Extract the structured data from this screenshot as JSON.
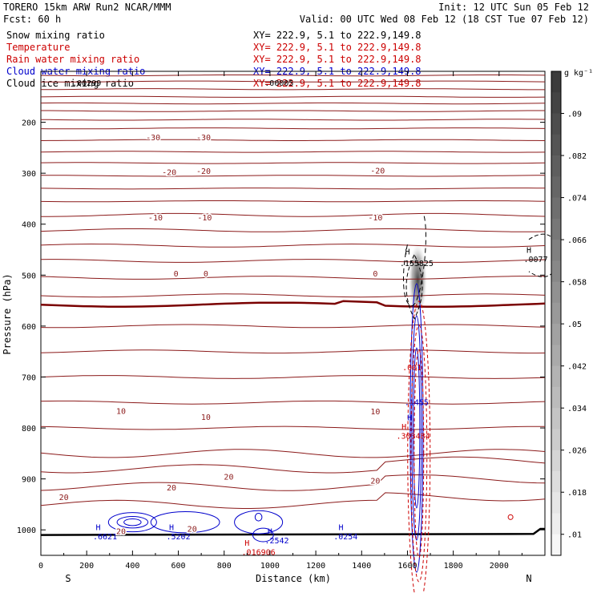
{
  "header": {
    "model": "TORERO  15km ARW   Run2    NCAR/MMM",
    "init": "Init: 12 UTC Sun 05 Feb 12",
    "fcst": "Fcst:   60 h",
    "valid": "Valid: 00 UTC Wed 08 Feb 12 (18 CST Tue 07 Feb 12)"
  },
  "fields": [
    {
      "label": "Snow mixing ratio",
      "xy": "XY= 222.9,  5.1 to 222.9,149.8",
      "color": "#000000"
    },
    {
      "label": "Temperature",
      "xy": "XY= 222.9,  5.1 to 222.9,149.8",
      "color": "#cc0000"
    },
    {
      "label": "Rain water mixing ratio",
      "xy": "XY= 222.9,  5.1 to 222.9,149.8",
      "color": "#cc0000"
    },
    {
      "label": "Cloud water mixing ratio",
      "xy": "XY= 222.9,  5.1 to 222.9,149.8",
      "color": "#0000cc"
    },
    {
      "label": "Cloud ice mixing ratio",
      "xy": "XY= 222.9,  5.1 to 222.9,149.8",
      "color": "#000000"
    }
  ],
  "chart_data": {
    "type": "cross-section contour",
    "xlabel": "Distance (km)",
    "ylabel": "Pressure (hPa)",
    "xlim": [
      0,
      2200
    ],
    "ylim": [
      1050,
      100
    ],
    "x_ticks": [
      "0",
      "200",
      "400",
      "600",
      "800",
      "1000",
      "1200",
      "1400",
      "1600",
      "1800",
      "2000"
    ],
    "y_ticks": [
      "200",
      "300",
      "400",
      "500",
      "600",
      "700",
      "800",
      "900",
      "1000"
    ],
    "endpoints": {
      "left": "S",
      "right": "N"
    },
    "temperature_labels": [
      {
        "text": "-30",
        "x": 490,
        "p": 229
      },
      {
        "text": "-30",
        "x": 710,
        "p": 229
      },
      {
        "text": "-20",
        "x": 560,
        "p": 297
      },
      {
        "text": "-20",
        "x": 710,
        "p": 295
      },
      {
        "text": "-20",
        "x": 1470,
        "p": 294
      },
      {
        "text": "-10",
        "x": 500,
        "p": 386
      },
      {
        "text": "-10",
        "x": 715,
        "p": 386
      },
      {
        "text": "-10",
        "x": 1460,
        "p": 386
      },
      {
        "text": "0",
        "x": 590,
        "p": 496
      },
      {
        "text": "0",
        "x": 720,
        "p": 496
      },
      {
        "text": "0",
        "x": 1460,
        "p": 496
      },
      {
        "text": "10",
        "x": 350,
        "p": 766
      },
      {
        "text": "10",
        "x": 720,
        "p": 778
      },
      {
        "text": "10",
        "x": 1460,
        "p": 767
      },
      {
        "text": "20",
        "x": 100,
        "p": 935
      },
      {
        "text": "20",
        "x": 570,
        "p": 916
      },
      {
        "text": "20",
        "x": 820,
        "p": 895
      },
      {
        "text": "20",
        "x": 1460,
        "p": 903
      },
      {
        "text": "20",
        "x": 350,
        "p": 1002
      },
      {
        "text": "20",
        "x": 660,
        "p": 997
      }
    ],
    "extrema_labels": [
      {
        "text": "H",
        "x": 250,
        "p": 994,
        "color": "#0000cc"
      },
      {
        "text": ".6621",
        "x": 280,
        "p": 1012,
        "color": "#0000cc"
      },
      {
        "text": "H",
        "x": 570,
        "p": 994,
        "color": "#0000cc"
      },
      {
        "text": ".5202",
        "x": 600,
        "p": 1012,
        "color": "#0000cc"
      },
      {
        "text": "H",
        "x": 1000,
        "p": 1002,
        "color": "#0000cc"
      },
      {
        "text": ".2542",
        "x": 1030,
        "p": 1020,
        "color": "#0000cc"
      },
      {
        "text": "H",
        "x": 1310,
        "p": 994,
        "color": "#0000cc"
      },
      {
        "text": ".0254",
        "x": 1330,
        "p": 1012,
        "color": "#0000cc"
      },
      {
        "text": "H",
        "x": 1610,
        "p": 779,
        "color": "#0000cc"
      },
      {
        "text": ".1455",
        "x": 1640,
        "p": 749,
        "color": "#0000cc"
      },
      {
        "text": "H",
        "x": 1585,
        "p": 797,
        "color": "#cc0000"
      },
      {
        "text": ".303484",
        "x": 1625,
        "p": 815,
        "color": "#cc0000"
      },
      {
        "text": ".001",
        "x": 1620,
        "p": 680,
        "color": "#cc0000"
      },
      {
        "text": "H",
        "x": 900,
        "p": 1025,
        "color": "#cc0000"
      },
      {
        "text": ".016906",
        "x": 950,
        "p": 1043,
        "color": "#cc0000"
      },
      {
        "text": "H",
        "x": 1600,
        "p": 453,
        "color": "#000000"
      },
      {
        "text": ".155825",
        "x": 1640,
        "p": 476,
        "color": "#000000"
      },
      {
        "text": "H",
        "x": 2130,
        "p": 450,
        "color": "#000000"
      },
      {
        "text": ".0077",
        "x": 2160,
        "p": 468,
        "color": "#000000"
      },
      {
        "text": ".00299",
        "x": 200,
        "p": 122,
        "color": "#000000"
      },
      {
        "text": ".00005",
        "x": 1040,
        "p": 122,
        "color": "#000000"
      }
    ],
    "colorbar": {
      "unit": "g kg⁻¹",
      "ticks": [
        ".01",
        ".018",
        ".026",
        ".034",
        ".042",
        ".05",
        ".058",
        ".066",
        ".074",
        ".082",
        ".09"
      ],
      "range": [
        0.006,
        0.098
      ]
    }
  }
}
